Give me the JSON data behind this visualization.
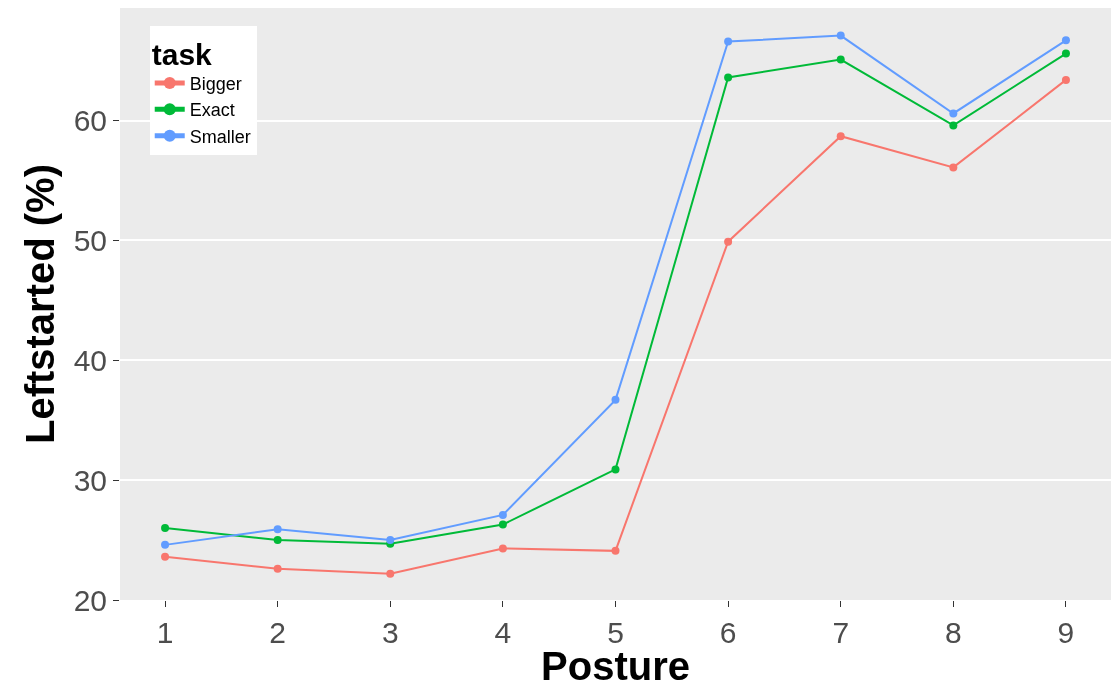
{
  "chart_data": {
    "type": "line",
    "xlabel": "Posture",
    "ylabel": "Leftstarted (%)",
    "legend_title": "task",
    "x": [
      1,
      2,
      3,
      4,
      5,
      6,
      7,
      8,
      9
    ],
    "series": [
      {
        "name": "Bigger",
        "color": "#f8766d",
        "values": [
          23.6,
          22.6,
          22.2,
          24.3,
          24.1,
          49.9,
          58.7,
          56.1,
          63.4
        ]
      },
      {
        "name": "Exact",
        "color": "#00ba38",
        "values": [
          26.0,
          25.0,
          24.7,
          26.3,
          30.9,
          63.6,
          65.1,
          59.6,
          65.6
        ]
      },
      {
        "name": "Smaller",
        "color": "#619cff",
        "values": [
          24.6,
          25.9,
          25.0,
          27.1,
          36.7,
          66.6,
          67.1,
          60.6,
          66.7
        ]
      }
    ],
    "xlim": [
      0.6,
      9.4
    ],
    "xticks": [
      1,
      2,
      3,
      4,
      5,
      6,
      7,
      8,
      9
    ],
    "ylim": [
      20,
      69.4
    ],
    "yticks": [
      20,
      30,
      40,
      50,
      60
    ],
    "grid": "y",
    "legend": "top left",
    "marker": "circle",
    "line_style": "solid"
  }
}
